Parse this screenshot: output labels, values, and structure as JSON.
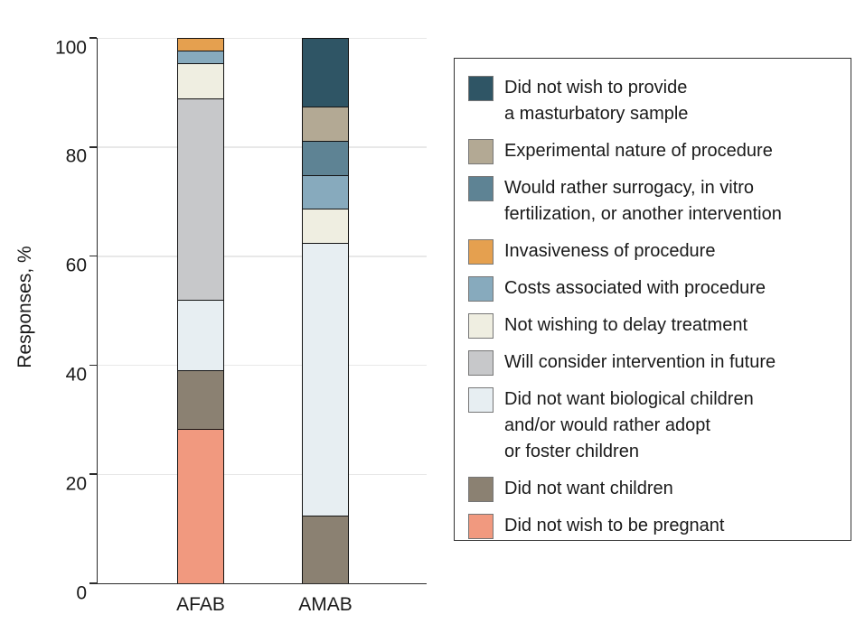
{
  "figure": {
    "background": "#ffffff",
    "title": ""
  },
  "axes": {
    "y_label": "Responses, %",
    "y_tick_labels": [
      "0",
      "20",
      "40",
      "60",
      "80",
      "100"
    ],
    "x_labels": [
      "AFAB",
      "AMAB"
    ]
  },
  "chart_data": {
    "type": "bar",
    "subtype": "stacked",
    "title": "",
    "xlabel": "",
    "ylabel": "Responses, %",
    "ylim": [
      0,
      100
    ],
    "yticks": [
      0,
      20,
      40,
      60,
      80,
      100
    ],
    "grid": "horizontal",
    "legend_position": "right",
    "categories": [
      "AFAB",
      "AMAB"
    ],
    "stack_order": "first listed series is at the bottom of the stack",
    "series": [
      {
        "name": "Did not wish to be pregnant",
        "color": "#f1997f",
        "values": [
          28.3,
          0
        ]
      },
      {
        "name": "Did not want children",
        "color": "#8b8172",
        "values": [
          10.9,
          12.5
        ]
      },
      {
        "name": "Did not want biological children and/or would rather adopt or foster children",
        "color": "#e7eef2",
        "values": [
          13.0,
          50.0
        ]
      },
      {
        "name": "Will consider intervention in future",
        "color": "#c7c8ca",
        "values": [
          37.0,
          0
        ]
      },
      {
        "name": "Not wishing to delay treatment",
        "color": "#efeee1",
        "values": [
          6.5,
          6.25
        ]
      },
      {
        "name": "Costs associated with procedure",
        "color": "#87aabd",
        "values": [
          2.2,
          6.25
        ]
      },
      {
        "name": "Invasiveness of procedure",
        "color": "#e5a04f",
        "values": [
          2.2,
          0
        ]
      },
      {
        "name": "Would rather surrogacy, in vitro fertilization, or another intervention",
        "color": "#5e8394",
        "values": [
          0,
          6.25
        ]
      },
      {
        "name": "Experimental nature of procedure",
        "color": "#b3a994",
        "values": [
          0,
          6.25
        ]
      },
      {
        "name": "Did not wish to provide a masturbatory sample",
        "color": "#2f5565",
        "values": [
          0,
          12.5
        ]
      }
    ]
  },
  "legend": {
    "items": [
      {
        "lines": [
          "Did not wish to provide",
          "a masturbatory sample"
        ],
        "color": "#2f5565"
      },
      {
        "lines": [
          "Experimental nature of procedure"
        ],
        "color": "#b3a994"
      },
      {
        "lines": [
          "Would rather surrogacy, in vitro",
          "fertilization, or another intervention"
        ],
        "color": "#5e8394"
      },
      {
        "lines": [
          "Invasiveness of procedure"
        ],
        "color": "#e5a04f"
      },
      {
        "lines": [
          "Costs associated with procedure"
        ],
        "color": "#87aabd"
      },
      {
        "lines": [
          "Not wishing to delay treatment"
        ],
        "color": "#efeee1"
      },
      {
        "lines": [
          "Will consider intervention in future"
        ],
        "color": "#c7c8ca"
      },
      {
        "lines": [
          "Did not want biological children",
          "and/or would rather adopt",
          "or foster children"
        ],
        "color": "#e7eef2"
      },
      {
        "lines": [
          "Did not want children"
        ],
        "color": "#8b8172"
      },
      {
        "lines": [
          "Did not wish to be pregnant"
        ],
        "color": "#f1997f"
      }
    ]
  },
  "colors": {
    "axis": "#2b2b2b",
    "gridline": "#e8e8e8",
    "segment_border": "#141414",
    "legend_border": "#333333",
    "text": "#1a1a1a"
  }
}
